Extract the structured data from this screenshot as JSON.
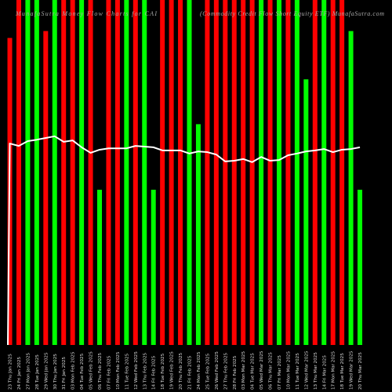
{
  "header": {
    "title_left": "MunafaSutra Money Flow Charts for CAI",
    "title_right": "(Commodity Credit Flow Short Equity ETF) MunafaSutra.com"
  },
  "colors": {
    "background": "#000000",
    "up": "#00ff00",
    "down": "#ff0000",
    "line": "#ffffff"
  },
  "chart_data": {
    "type": "bar",
    "title": "",
    "xlabel": "",
    "ylabel": "",
    "ylim": [
      0,
      100
    ],
    "grid": false,
    "legend": "none",
    "categories": [
      "23 Thu Jan 2025",
      "24 Fri Jan 2025",
      "27 Mon Jan 2025",
      "28 Tue Jan 2025",
      "29 Wed Jan 2025",
      "30 Thu Jan 2025",
      "31 Fri Jan 2025",
      "03 Mon Feb 2025",
      "04 Tue Feb 2025",
      "05 Wed Feb 2025",
      "06 Thu Feb 2025",
      "07 Fri Feb 2025",
      "10 Mon Feb 2025",
      "11 Tue Feb 2025",
      "12 Wed Feb 2025",
      "13 Thu Feb 2025",
      "14 Fri Feb 2025",
      "18 Tue Feb 2025",
      "19 Wed Feb 2025",
      "20 Thu Feb 2025",
      "21 Fri Feb 2025",
      "24 Mon Feb 2025",
      "25 Tue Feb 2025",
      "26 Wed Feb 2025",
      "27 Thu Feb 2025",
      "28 Fri Feb 2025",
      "03 Mon Mar 2025",
      "04 Tue Mar 2025",
      "05 Wed Mar 2025",
      "06 Thu Mar 2025",
      "07 Fri Mar 2025",
      "10 Mon Mar 2025",
      "11 Tue Mar 2025",
      "12 Wed Mar 2025",
      "13 Thu Mar 2025",
      "14 Fri Mar 2025",
      "17 Mon Mar 2025",
      "18 Tue Mar 2025",
      "19 Wed Mar 2025",
      "20 Thu Mar 2025"
    ],
    "values": [
      89,
      100,
      100,
      100,
      91,
      100,
      100,
      100,
      100,
      100,
      45,
      100,
      100,
      100,
      100,
      100,
      45,
      100,
      100,
      100,
      100,
      64,
      100,
      100,
      100,
      100,
      100,
      100,
      100,
      100,
      100,
      100,
      100,
      77,
      100,
      100,
      100,
      100,
      91,
      45
    ],
    "bar_colors": [
      "down",
      "down",
      "up",
      "up",
      "down",
      "up",
      "down",
      "down",
      "up",
      "down",
      "up",
      "down",
      "down",
      "up",
      "down",
      "up",
      "up",
      "down",
      "down",
      "down",
      "up",
      "up",
      "down",
      "down",
      "down",
      "down",
      "down",
      "down",
      "up",
      "down",
      "up",
      "down",
      "up",
      "up",
      "down",
      "up",
      "down",
      "down",
      "up",
      "up"
    ],
    "average_line": [
      58.4,
      57.7,
      59.1,
      59.5,
      60.0,
      60.5,
      58.9,
      59.3,
      57.3,
      55.7,
      56.6,
      57.0,
      57.0,
      57.0,
      57.7,
      57.5,
      57.3,
      56.4,
      56.4,
      56.4,
      55.5,
      56.1,
      55.9,
      55.2,
      53.2,
      53.4,
      53.9,
      53.0,
      54.5,
      53.4,
      53.6,
      55.0,
      55.5,
      56.1,
      56.4,
      56.8,
      55.9,
      56.6,
      56.8,
      57.3
    ]
  }
}
